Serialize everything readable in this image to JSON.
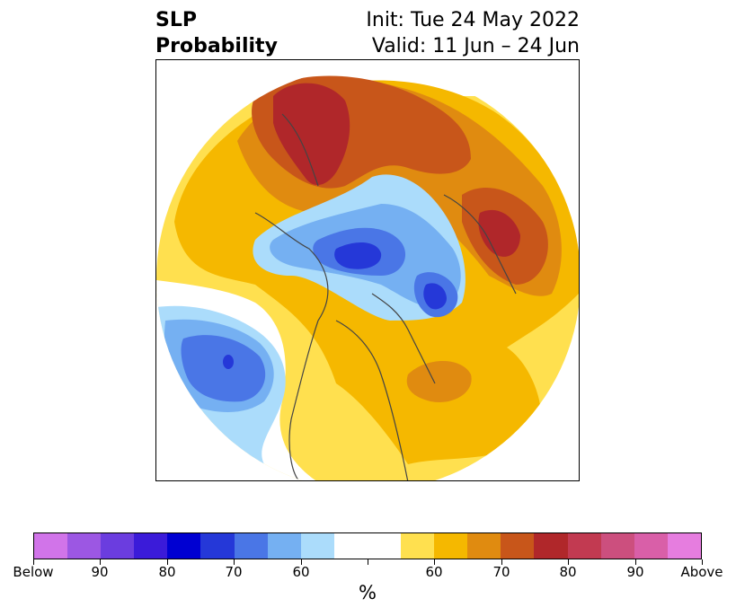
{
  "title": {
    "left_line1": "SLP",
    "left_line2": "Probability",
    "right_line1": "Init: Tue 24 May 2022",
    "right_line2": "Valid: 11 Jun – 24 Jun"
  },
  "map": {
    "projection": "north-polar-stereographic",
    "fill_regions": [
      {
        "name": "broad-above-normal",
        "color": "#f5b800"
      },
      {
        "name": "europe-siberia-strong-above",
        "color": "#c8561a"
      },
      {
        "name": "europe-core-above",
        "color": "#b0272a"
      },
      {
        "name": "north-pacific-below",
        "color": "#4a76e6"
      },
      {
        "name": "arctic-below",
        "color": "#2538d8"
      },
      {
        "name": "greenland-below",
        "color": "#2538d8"
      }
    ]
  },
  "colorbar": {
    "colors": [
      "#d174e9",
      "#9c57e3",
      "#6b3ddf",
      "#3b1bd9",
      "#0000d2",
      "#2538d8",
      "#4a76e6",
      "#75b0f2",
      "#abdcfb",
      "#ffffff",
      "#ffffff",
      "#ffe04f",
      "#f5b800",
      "#e08b10",
      "#c8561a",
      "#b0272a",
      "#c23a51",
      "#cc4f7e",
      "#d95fa8",
      "#e67ddf"
    ],
    "tick_labels": [
      "Below",
      "90",
      "80",
      "70",
      "60",
      "",
      "60",
      "70",
      "80",
      "90",
      "Above"
    ],
    "unit": "%"
  }
}
